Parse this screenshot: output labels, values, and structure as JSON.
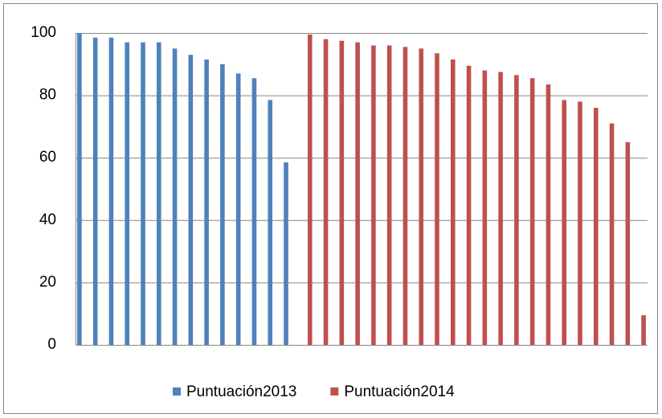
{
  "chart_data": {
    "type": "bar",
    "categories": [
      null,
      null,
      null,
      null,
      null,
      null,
      null,
      null,
      null,
      null,
      null,
      null,
      null,
      null,
      null,
      null,
      null,
      null,
      null,
      null,
      null,
      null,
      null,
      null,
      null,
      null,
      null,
      null,
      null,
      null,
      null,
      null,
      null,
      null,
      null,
      null
    ],
    "series": [
      {
        "name": "Puntuación2013",
        "color": "#4f81bd",
        "values": [
          100,
          98.5,
          98.5,
          97,
          97,
          97,
          95,
          93,
          91.5,
          90,
          87,
          85.5,
          78.5,
          58.5,
          null,
          null,
          null,
          null,
          null,
          null,
          null,
          null,
          null,
          null,
          null,
          null,
          null,
          null,
          null,
          null,
          null,
          null,
          null,
          null,
          null,
          null
        ]
      },
      {
        "name": "Puntuación2014",
        "color": "#c0504d",
        "values": [
          null,
          null,
          null,
          null,
          null,
          null,
          null,
          null,
          null,
          null,
          null,
          null,
          null,
          null,
          99.5,
          98,
          97.5,
          97,
          96,
          96,
          95.5,
          95,
          93.5,
          91.5,
          89.5,
          88,
          87.5,
          86.5,
          85.5,
          83.5,
          78.5,
          78,
          76,
          71,
          65,
          9.5
        ]
      }
    ],
    "ylim": [
      0,
      100
    ],
    "yticks": [
      0,
      20,
      40,
      60,
      80,
      100
    ],
    "grid": true,
    "legend": "bottom"
  }
}
